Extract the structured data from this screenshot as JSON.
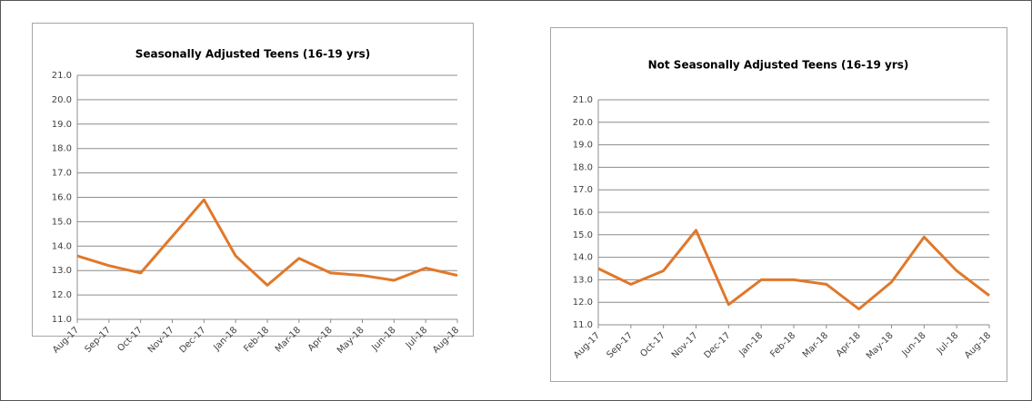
{
  "chart_data": [
    {
      "type": "line",
      "title": "Seasonally Adjusted Teens (16-19 yrs)",
      "categories": [
        "Aug-17",
        "Sep-17",
        "Oct-17",
        "Nov-17",
        "Dec-17",
        "Jan-18",
        "Feb-18",
        "Mar-18",
        "Apr-18",
        "May-18",
        "Jun-18",
        "Jul-18",
        "Aug-18"
      ],
      "series": [
        {
          "name": "Seasonally Adjusted Teens (16-19 yrs)",
          "color": "#e0782a",
          "values": [
            13.6,
            13.2,
            12.9,
            14.4,
            15.9,
            13.6,
            12.4,
            13.5,
            12.9,
            12.8,
            12.6,
            13.1,
            12.8
          ]
        }
      ],
      "ylim": [
        11,
        21
      ],
      "yticks": [
        {
          "value": 11,
          "label": "11.0"
        },
        {
          "value": 12,
          "label": "12.0"
        },
        {
          "value": 13,
          "label": "13.0"
        },
        {
          "value": 14,
          "label": "14.0"
        },
        {
          "value": 15,
          "label": "15.0"
        },
        {
          "value": 16,
          "label": "16.0"
        },
        {
          "value": 17,
          "label": "17.0"
        },
        {
          "value": 18,
          "label": "18.0"
        },
        {
          "value": 19,
          "label": "19.0"
        },
        {
          "value": 20,
          "label": "20.0"
        },
        {
          "value": 21,
          "label": "21.0"
        }
      ],
      "grid": true
    },
    {
      "type": "line",
      "title": "Not Seasonally Adjusted Teens (16-19 yrs)",
      "categories": [
        "Aug-17",
        "Sep-17",
        "Oct-17",
        "Nov-17",
        "Dec-17",
        "Jan-18",
        "Feb-18",
        "Mar-18",
        "Apr-18",
        "May-18",
        "Jun-18",
        "Jul-18",
        "Aug-18"
      ],
      "series": [
        {
          "name": "Not Seasonally Adjusted Teens (16-19 yrs)",
          "color": "#e0782a",
          "values": [
            13.5,
            12.8,
            13.4,
            15.2,
            11.9,
            13.0,
            13.0,
            12.8,
            11.7,
            12.9,
            14.9,
            13.4,
            12.3
          ]
        }
      ],
      "ylim": [
        11,
        21
      ],
      "yticks": [
        {
          "value": 11,
          "label": "11.0"
        },
        {
          "value": 12,
          "label": "12.0"
        },
        {
          "value": 13,
          "label": "13.0"
        },
        {
          "value": 14,
          "label": "14.0"
        },
        {
          "value": 15,
          "label": "15.0"
        },
        {
          "value": 16,
          "label": "16.0"
        },
        {
          "value": 17,
          "label": "17.0"
        },
        {
          "value": 18,
          "label": "18.0"
        },
        {
          "value": 19,
          "label": "19.0"
        },
        {
          "value": 20,
          "label": "20.0"
        },
        {
          "value": 21,
          "label": "21.0"
        }
      ],
      "grid": true
    }
  ]
}
